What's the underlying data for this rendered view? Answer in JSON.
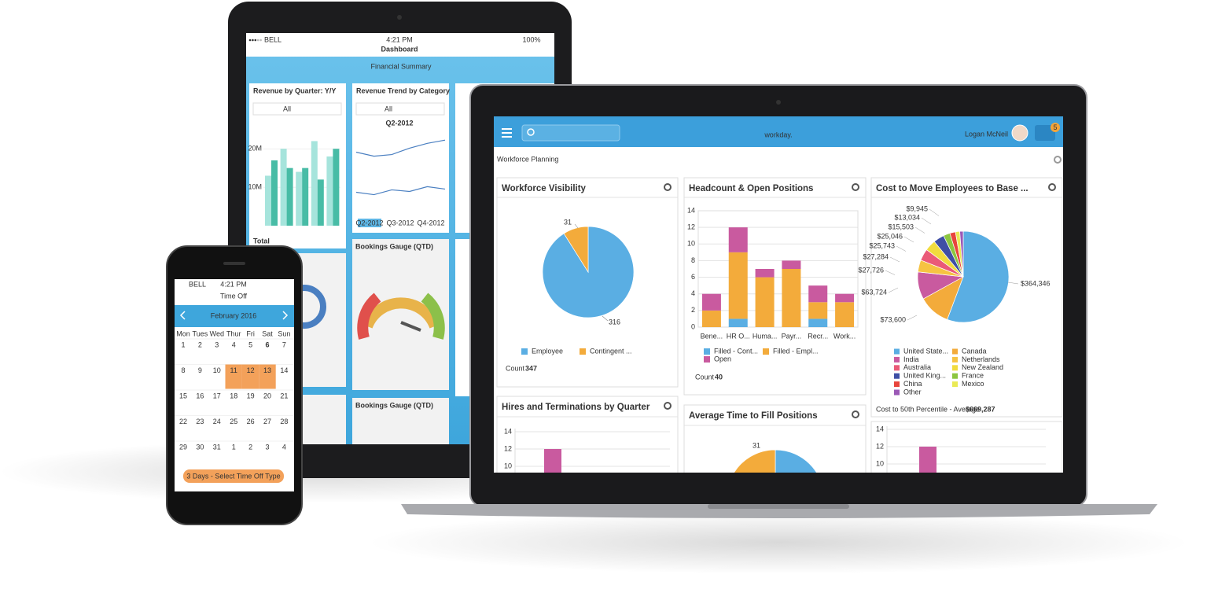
{
  "tablet": {
    "status": {
      "carrier": "BELL",
      "time": "4:21 PM",
      "battery": "100%"
    },
    "nav_title": "Dashboard",
    "section_title": "Financial Summary",
    "revenue_card": {
      "title": "Revenue by Quarter: Y/Y",
      "filter": "All",
      "ylim": [
        0,
        27
      ],
      "yticks": [
        {
          "value": 10,
          "label": "10M"
        },
        {
          "value": 20,
          "label": "20M"
        }
      ],
      "series": [
        {
          "color": "#a6e4dc",
          "values": [
            13,
            20,
            14,
            22,
            18
          ]
        },
        {
          "color": "#48bca6",
          "values": [
            17,
            15,
            15,
            12,
            20
          ]
        }
      ],
      "total_label": "Total"
    },
    "trend_card": {
      "title": "Revenue Trend by Category",
      "filter": "All",
      "period": "Q2-2012",
      "quarters": [
        "Q2-2012",
        "Q3-2012",
        "Q4-2012"
      ],
      "ylim": [
        0,
        10
      ],
      "series": [
        {
          "color": "#4a7fc1",
          "values": [
            7.5,
            7,
            7.2,
            8,
            8.6,
            9
          ]
        },
        {
          "color": "#4a7fc1",
          "values": [
            2.5,
            2.2,
            2.8,
            2.6,
            3.2,
            2.9
          ]
        }
      ]
    },
    "gauge_cards": [
      "Bookings Gauge (QTD)",
      "Bookings Gauge (QTD)"
    ]
  },
  "phone": {
    "status": {
      "carrier": "BELL",
      "time": "4:21 PM"
    },
    "title": "Time Off",
    "month": "February 2016",
    "weekdays": [
      "Mon",
      "Tues",
      "Wed",
      "Thur",
      "Fri",
      "Sat",
      "Sun"
    ],
    "weeks": [
      [
        1,
        2,
        3,
        4,
        5,
        6,
        7
      ],
      [
        8,
        9,
        10,
        11,
        12,
        13,
        14
      ],
      [
        15,
        16,
        17,
        18,
        19,
        20,
        21
      ],
      [
        22,
        23,
        24,
        25,
        26,
        27,
        28
      ],
      [
        29,
        30,
        31,
        1,
        2,
        3,
        4
      ]
    ],
    "selected_days": [
      11,
      12,
      13
    ],
    "today": 6,
    "button": "3 Days - Select Time Off Type"
  },
  "laptop": {
    "brand": "workday.",
    "user": "Logan McNeil",
    "notifications": 5,
    "page_title": "Workforce Planning",
    "workforce_visibility": {
      "title": "Workforce Visibility",
      "type": "pie",
      "categories": [
        "Employee",
        "Contingent ..."
      ],
      "values": [
        316,
        31
      ],
      "colors": [
        "#5aaee3",
        "#f3ab3b"
      ],
      "count_label": "Count",
      "count": 347
    },
    "headcount": {
      "title": "Headcount & Open Positions",
      "type": "bar",
      "categories": [
        "Bene...",
        "HR O...",
        "Huma...",
        "Payr...",
        "Recr...",
        "Work..."
      ],
      "series": [
        {
          "name": "Filled - Cont...",
          "color": "#5aaee3",
          "values": [
            0,
            1,
            0,
            0,
            1,
            0
          ]
        },
        {
          "name": "Filled - Empl...",
          "color": "#f3ab3b",
          "values": [
            2,
            8,
            6,
            7,
            2,
            3
          ]
        },
        {
          "name": "Open",
          "color": "#c95a9f",
          "values": [
            2,
            3,
            1,
            1,
            2,
            1
          ]
        }
      ],
      "ylim": [
        0,
        14
      ],
      "yticks": [
        0,
        2,
        4,
        6,
        8,
        10,
        12,
        14
      ],
      "grid": true,
      "count_label": "Count",
      "count": 40
    },
    "cost_to_move": {
      "title": "Cost to Move Employees to Base ...",
      "type": "pie",
      "categories": [
        "United State...",
        "Canada",
        "India",
        "Netherlands",
        "Australia",
        "New Zealand",
        "United King...",
        "France",
        "China",
        "Mexico",
        "Other"
      ],
      "values": [
        364346,
        73600,
        63724,
        27726,
        27284,
        25743,
        25046,
        15503,
        13034,
        9945,
        8000
      ],
      "value_labels": [
        "$364,346",
        "$73,600",
        "$63,724",
        "$27,726",
        "$27,284",
        "$25,743",
        "$25,046",
        "$15,503",
        "$13,034",
        "$9,945",
        null
      ],
      "colors": [
        "#5aaee3",
        "#f3ab3b",
        "#c95a9f",
        "#f6c342",
        "#ea5a78",
        "#f1dc3e",
        "#3f4fa5",
        "#8cc63f",
        "#e8453c",
        "#eaea55",
        "#9b59b6"
      ],
      "footer_label": "Cost to 50th Percentile - Average",
      "footer_value": "$669,287"
    },
    "hires_terminations": {
      "title": "Hires and Terminations by Quarter",
      "type": "bar",
      "ylim": [
        0,
        14
      ],
      "yticks": [
        10,
        12,
        14
      ],
      "values": [
        12
      ],
      "color": "#c95a9f"
    },
    "avg_time_to_fill": {
      "title": "Average Time to Fill Positions",
      "type": "pie",
      "values": [
        150,
        31
      ],
      "colors": [
        "#5aaee3",
        "#f3ab3b"
      ]
    },
    "cost_chart": {
      "type": "bar",
      "ylim": [
        0,
        14
      ],
      "yticks": [
        10,
        12,
        14
      ],
      "values": [
        12
      ],
      "color": "#c95a9f"
    }
  }
}
